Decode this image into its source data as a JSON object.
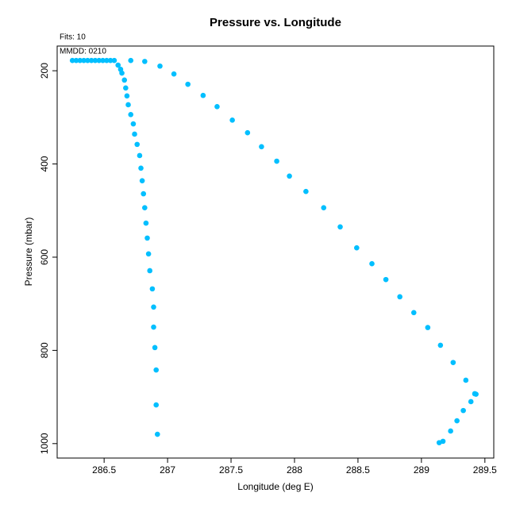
{
  "chart_data": {
    "type": "scatter",
    "title": "Pressure vs. Longitude",
    "annotations": [
      "Fits: 10",
      "MMDD: 0210"
    ],
    "xlabel": "Longitude (deg E)",
    "ylabel": "Pressure (mbar)",
    "color": "#00bfff",
    "xlim": [
      286.13,
      289.57
    ],
    "xticks": [
      286.5,
      287,
      287.5,
      288,
      288.5,
      289,
      289.5
    ],
    "ylim": [
      1031,
      147
    ],
    "yticks": [
      200,
      400,
      600,
      800,
      1000
    ],
    "x": [
      286.25,
      286.28,
      286.31,
      286.34,
      286.37,
      286.4,
      286.43,
      286.46,
      286.49,
      286.52,
      286.55,
      286.58,
      286.61,
      286.63,
      286.64,
      286.66,
      286.67,
      286.68,
      286.69,
      286.71,
      286.73,
      286.74,
      286.76,
      286.78,
      286.79,
      286.8,
      286.81,
      286.82,
      286.83,
      286.84,
      286.85,
      286.86,
      286.88,
      286.89,
      286.89,
      286.9,
      286.91,
      286.91,
      286.92,
      286.71,
      286.82,
      286.94,
      287.05,
      287.16,
      287.28,
      287.39,
      287.51,
      287.63,
      287.74,
      287.86,
      287.96,
      288.09,
      288.23,
      288.36,
      288.49,
      288.61,
      288.72,
      288.83,
      288.94,
      289.05,
      289.15,
      289.25,
      289.35,
      289.42,
      289.43,
      289.39,
      289.33,
      289.28,
      289.23,
      289.17,
      289.14
    ],
    "values": [
      178,
      178,
      178,
      178,
      178,
      178,
      178,
      178,
      178,
      178,
      178,
      178,
      188,
      197,
      205,
      220,
      237,
      254,
      273,
      294,
      314,
      336,
      358,
      382,
      409,
      436,
      464,
      494,
      527,
      559,
      593,
      629,
      668,
      707,
      750,
      794,
      842,
      917,
      980,
      178,
      180,
      190,
      207,
      229,
      253,
      277,
      306,
      333,
      363,
      394,
      426,
      459,
      494,
      535,
      580,
      614,
      648,
      685,
      719,
      751,
      789,
      826,
      864,
      893,
      894,
      910,
      929,
      951,
      973,
      995,
      998
    ]
  }
}
